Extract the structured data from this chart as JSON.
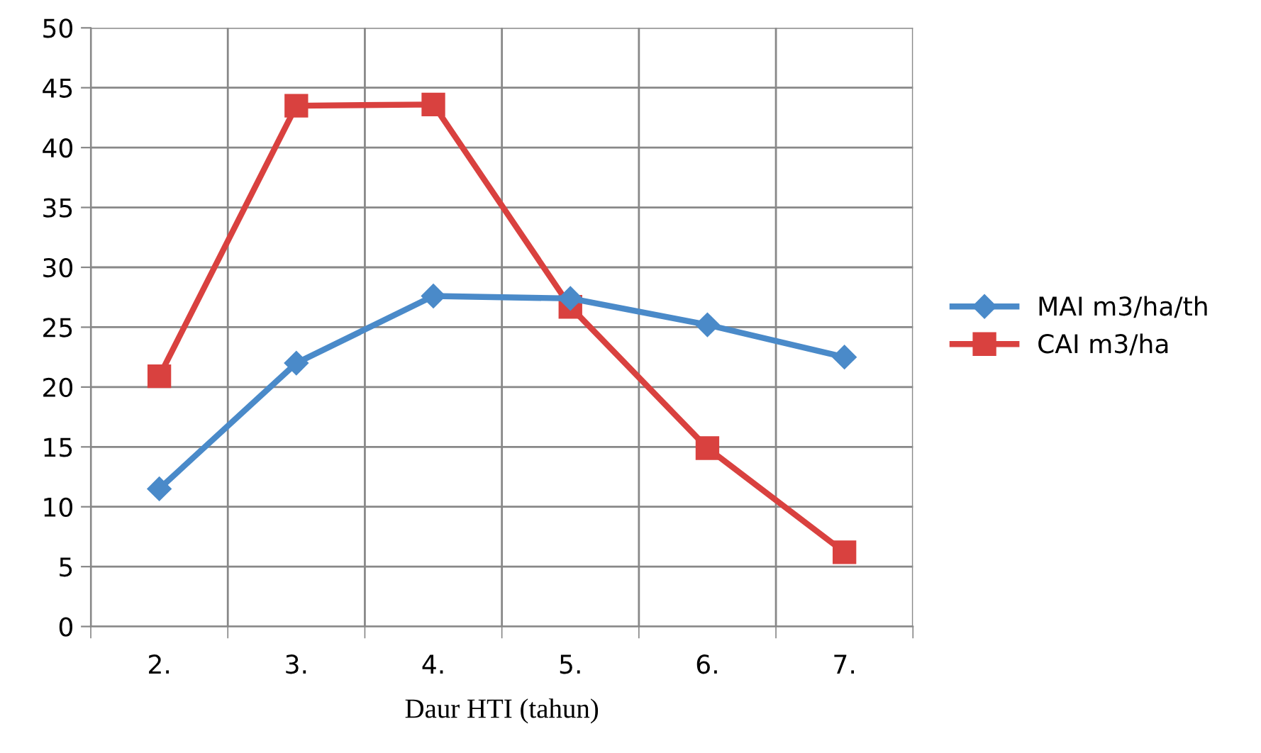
{
  "chart_data": {
    "type": "line",
    "xlabel": "Daur HTI (tahun)",
    "categories": [
      "2.",
      "3.",
      "4.",
      "5.",
      "6.",
      "7."
    ],
    "series": [
      {
        "name": "MAI m3/ha/th",
        "color": "#4a8ac9",
        "marker": "diamond",
        "values": [
          11.5,
          22.0,
          27.6,
          27.4,
          25.2,
          22.5
        ]
      },
      {
        "name": "CAI m3/ha",
        "color": "#d9413f",
        "marker": "square",
        "values": [
          20.9,
          43.5,
          43.6,
          26.7,
          14.9,
          6.2
        ]
      }
    ],
    "ylim": [
      0,
      50
    ],
    "yticks": [
      0,
      5,
      10,
      15,
      20,
      25,
      30,
      35,
      40,
      45,
      50
    ],
    "grid": true,
    "legend": "right",
    "line_style": "solid"
  }
}
